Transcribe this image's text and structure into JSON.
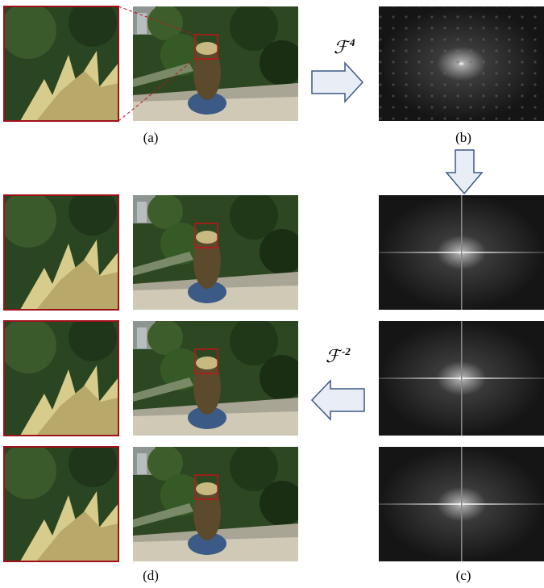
{
  "panels": {
    "a": {
      "label": "(a)"
    },
    "b": {
      "label": "(b)"
    },
    "c": {
      "label": "(c)"
    },
    "d": {
      "label": "(d)"
    }
  },
  "transforms": [
    {
      "symbol": "ℱ",
      "exponent": "4"
    },
    {
      "symbol": "ℱ",
      "exponent": "-2"
    }
  ]
}
